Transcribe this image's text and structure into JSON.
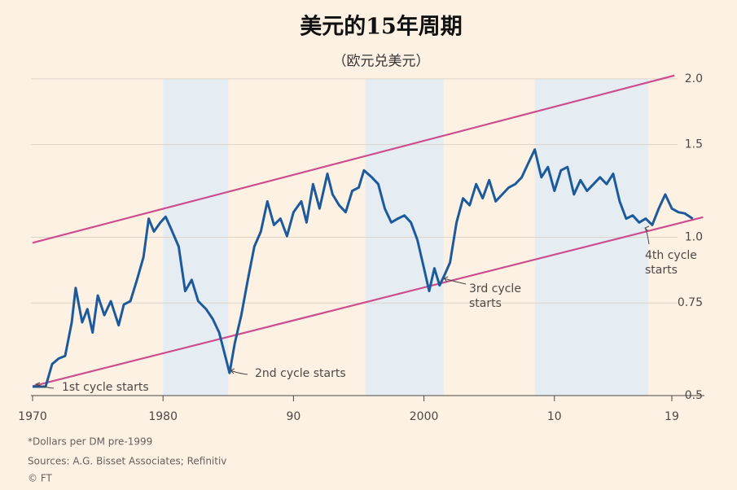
{
  "chart_data": {
    "type": "line",
    "title": "美元的15年周期",
    "subtitle": "（欧元兑美元）",
    "footnotes": [
      "*Dollars per DM pre-1999",
      "Sources: A.G. Bisset Associates; Refinitiv",
      "© FT"
    ],
    "log_scale": true,
    "grid": true,
    "xlim": [
      1970,
      2021.5
    ],
    "xticks": [
      1970,
      1980,
      {
        "value": 1990,
        "label": "90"
      },
      2000,
      {
        "value": 2010,
        "label": "10"
      },
      {
        "value": 2019,
        "label": "19"
      }
    ],
    "ylim": [
      0.5,
      2.05
    ],
    "yticks": [
      0.5,
      0.75,
      {
        "value": 1,
        "label": "1.0"
      },
      1.5,
      {
        "value": 2,
        "label": "2.0"
      }
    ],
    "shaded_periods": [
      [
        1980,
        1985
      ],
      [
        1995.5,
        2001.5
      ],
      [
        2008.5,
        2017.2
      ]
    ],
    "shade_color": "#e5edf3",
    "channel_color": "#cc4e8c",
    "channel_lines": [
      {
        "x": [
          1970,
          2019.2
        ],
        "values": [
          0.976,
          2.03
        ]
      },
      {
        "x": [
          1970,
          2021.4
        ],
        "values": [
          0.521,
          1.092
        ]
      }
    ],
    "annotations": [
      [
        "1st cycle starts"
      ],
      [
        "2nd cycle starts"
      ],
      [
        "3rd cycle",
        "starts"
      ],
      [
        "4th cycle",
        "starts"
      ]
    ],
    "series": [
      {
        "color": "#1d5a9b",
        "x": [
          1970.0,
          1971.0,
          1971.5,
          1972.0,
          1972.5,
          1973.0,
          1973.3,
          1973.8,
          1974.2,
          1974.6,
          1975.0,
          1975.5,
          1976.0,
          1976.6,
          1977.0,
          1977.5,
          1978.0,
          1978.5,
          1978.9,
          1979.3,
          1979.8,
          1980.2,
          1980.6,
          1981.2,
          1981.7,
          1982.2,
          1982.7,
          1983.3,
          1983.8,
          1984.3,
          1984.8,
          1985.1,
          1985.5,
          1986.0,
          1986.5,
          1987.0,
          1987.5,
          1988.0,
          1988.5,
          1989.0,
          1989.5,
          1990.0,
          1990.6,
          1991.0,
          1991.5,
          1992.0,
          1992.6,
          1993.0,
          1993.5,
          1994.0,
          1994.5,
          1995.0,
          1995.4,
          1996.0,
          1996.5,
          1997.0,
          1997.5,
          1998.0,
          1998.5,
          1999.0,
          1999.5,
          2000.0,
          2000.4,
          2000.8,
          2001.2,
          2001.6,
          2002.0,
          2002.5,
          2003.0,
          2003.5,
          2004.0,
          2004.5,
          2005.0,
          2005.5,
          2006.0,
          2006.5,
          2007.0,
          2007.5,
          2008.0,
          2008.5,
          2009.0,
          2009.5,
          2010.0,
          2010.5,
          2011.0,
          2011.5,
          2012.0,
          2012.5,
          2013.0,
          2013.5,
          2014.0,
          2014.5,
          2015.0,
          2015.5,
          2016.0,
          2016.5,
          2017.0,
          2017.5,
          2018.0,
          2018.5,
          2019.0,
          2019.5,
          2020.0,
          2020.6
        ],
        "values": [
          0.52,
          0.52,
          0.574,
          0.588,
          0.595,
          0.689,
          0.801,
          0.689,
          0.73,
          0.659,
          0.775,
          0.711,
          0.756,
          0.68,
          0.745,
          0.756,
          0.83,
          0.917,
          1.085,
          1.025,
          1.067,
          1.094,
          1.04,
          0.96,
          0.79,
          0.83,
          0.756,
          0.73,
          0.7,
          0.659,
          0.59,
          0.552,
          0.629,
          0.711,
          0.83,
          0.96,
          1.025,
          1.17,
          1.055,
          1.085,
          1.005,
          1.116,
          1.17,
          1.067,
          1.262,
          1.134,
          1.32,
          1.206,
          1.15,
          1.116,
          1.225,
          1.243,
          1.34,
          1.3,
          1.262,
          1.134,
          1.067,
          1.085,
          1.1,
          1.067,
          0.988,
          0.873,
          0.79,
          0.873,
          0.81,
          0.85,
          0.895,
          1.067,
          1.186,
          1.15,
          1.262,
          1.186,
          1.284,
          1.17,
          1.206,
          1.243,
          1.262,
          1.3,
          1.383,
          1.468,
          1.3,
          1.36,
          1.225,
          1.34,
          1.36,
          1.206,
          1.284,
          1.225,
          1.262,
          1.3,
          1.262,
          1.32,
          1.17,
          1.085,
          1.1,
          1.067,
          1.085,
          1.055,
          1.134,
          1.206,
          1.134,
          1.116,
          1.11,
          1.085
        ]
      }
    ]
  }
}
